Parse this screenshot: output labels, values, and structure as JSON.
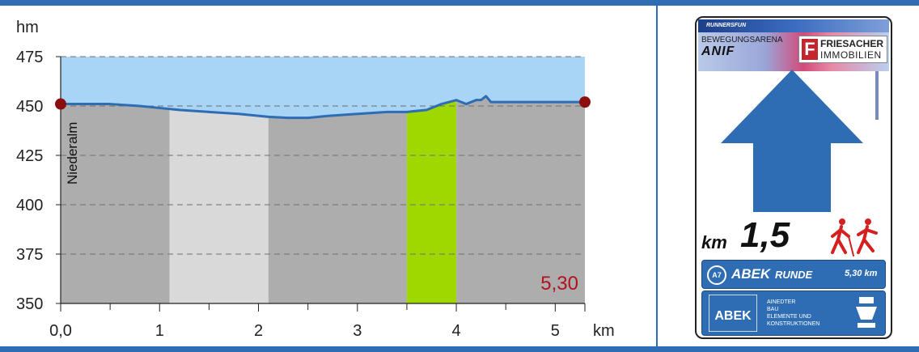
{
  "chart_data": {
    "type": "area",
    "xlabel": "km",
    "ylabel": "hm",
    "xlim": [
      0,
      5.3
    ],
    "ylim": [
      350,
      475
    ],
    "x_ticks": [
      0,
      1,
      2,
      3,
      4,
      5
    ],
    "x_tick_labels": [
      "0,0",
      "1",
      "2",
      "3",
      "4",
      "5"
    ],
    "y_ticks": [
      350,
      375,
      400,
      425,
      450,
      475
    ],
    "grid": true,
    "bands": [
      {
        "from": 0.0,
        "to": 1.1,
        "color": "#adadad"
      },
      {
        "from": 1.1,
        "to": 2.1,
        "color": "#d9d9da"
      },
      {
        "from": 2.1,
        "to": 3.5,
        "color": "#adadad"
      },
      {
        "from": 3.5,
        "to": 4.0,
        "color": "#9fd800"
      },
      {
        "from": 4.0,
        "to": 5.3,
        "color": "#adadad"
      }
    ],
    "series": [
      {
        "x": [
          0,
          0.2,
          0.5,
          0.8,
          1.0,
          1.2,
          1.5,
          1.8,
          2.1,
          2.3,
          2.5,
          2.7,
          3.0,
          3.3,
          3.5,
          3.7,
          3.85,
          4.0,
          4.05,
          4.1,
          4.2,
          4.25,
          4.3,
          4.35,
          4.45,
          4.6,
          4.8,
          5.0,
          5.2,
          5.3
        ],
        "y": [
          451,
          451,
          451,
          450,
          449,
          448,
          447,
          446,
          444.5,
          444,
          444,
          445,
          446,
          447,
          447,
          448,
          451,
          453,
          452,
          451,
          453,
          453,
          455,
          452,
          452,
          452,
          452,
          452,
          452,
          452
        ]
      }
    ],
    "annotations": {
      "start_label": "Niederalm",
      "end_value": "5,30"
    },
    "colors": {
      "sky": "#a8d4f5",
      "line": "#2e6db3",
      "marker": "#8b0f0f",
      "accent_text": "#b3121c"
    }
  },
  "sign": {
    "brand": "RUNNERSFUN",
    "arena_line1": "BEWEGUNGSARENA",
    "arena_line2": "ANIF",
    "sponsor_letter": "F",
    "sponsor_name": "FRIESACHER",
    "sponsor_sub": "IMMOBILIEN",
    "km_label": "km",
    "km_value": "1,5",
    "route_badge": "A7",
    "route_name": "ABEK",
    "route_name2": "RUNDE",
    "route_distance": "5,30 km",
    "abek_logo_text": "ABEK",
    "abek_line1": "AINEDTER",
    "abek_line2": "BAU",
    "abek_line3": "ELEMENTE UND",
    "abek_line4": "KONSTRUKTIONEN"
  },
  "colors": {
    "frame": "#2e6db3",
    "arrow": "#2e6db3",
    "walker": "#d42020"
  }
}
